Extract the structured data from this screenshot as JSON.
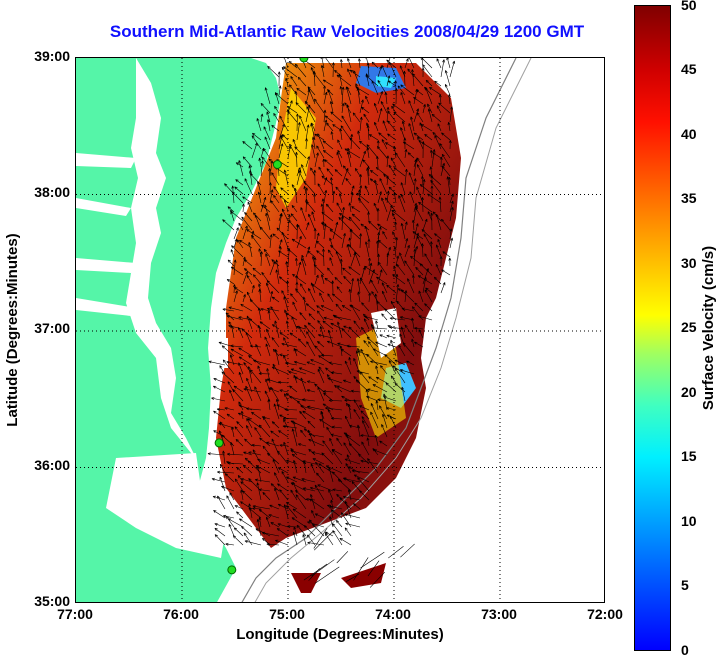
{
  "title": "Southern Mid-Atlantic Raw Velocities 2008/04/29 1200 GMT",
  "x_axis": {
    "label": "Longitude (Degrees:Minutes)",
    "ticks": [
      "77:00",
      "76:00",
      "75:00",
      "74:00",
      "73:00",
      "72:00"
    ]
  },
  "y_axis": {
    "label": "Latitude (Degrees:Minutes)",
    "ticks": [
      "39:00",
      "38:00",
      "37:00",
      "36:00",
      "35:00"
    ]
  },
  "colorbar": {
    "label": "Surface Velocity (cm/s)",
    "ticks": [
      "50",
      "45",
      "40",
      "35",
      "30",
      "25",
      "20",
      "15",
      "10",
      "5",
      "0"
    ],
    "range": [
      0,
      50
    ]
  },
  "map": {
    "lon_range": [
      -77,
      -72
    ],
    "lat_range": [
      35,
      39
    ],
    "grid": true,
    "land_color": "#55f5a8",
    "stations": [
      {
        "lon": -74.85,
        "lat": 39.0
      },
      {
        "lon": -75.1,
        "lat": 38.22
      },
      {
        "lon": -75.65,
        "lat": 36.18
      },
      {
        "lon": -75.53,
        "lat": 35.25
      }
    ]
  }
}
